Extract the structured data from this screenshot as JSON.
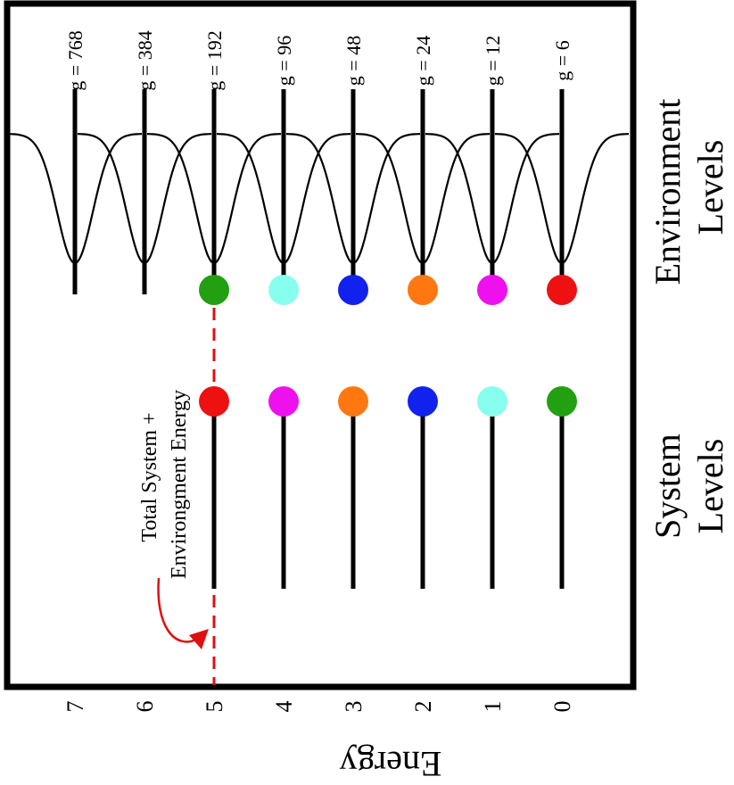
{
  "axis": {
    "label": "Energy",
    "ticks": [
      "0",
      "1",
      "2",
      "3",
      "4",
      "5",
      "6",
      "7"
    ]
  },
  "environment": {
    "label_line1": "Environment",
    "label_line2": "Levels",
    "degeneracies": [
      {
        "energy": 0,
        "text": "g = 6"
      },
      {
        "energy": 1,
        "text": "g = 12"
      },
      {
        "energy": 2,
        "text": "g = 24"
      },
      {
        "energy": 3,
        "text": "g = 48"
      },
      {
        "energy": 4,
        "text": "g = 96"
      },
      {
        "energy": 5,
        "text": "g = 192"
      },
      {
        "energy": 6,
        "text": "g = 384"
      },
      {
        "energy": 7,
        "text": "g = 768"
      }
    ],
    "dots": [
      {
        "energy": 0,
        "color": "#ee1111"
      },
      {
        "energy": 1,
        "color": "#ee11ee"
      },
      {
        "energy": 2,
        "color": "#ff7711"
      },
      {
        "energy": 3,
        "color": "#1122ee"
      },
      {
        "energy": 4,
        "color": "#88ffee"
      },
      {
        "energy": 5,
        "color": "#22a011"
      }
    ]
  },
  "system": {
    "label_line1": "System",
    "label_line2": "Levels",
    "dots": [
      {
        "energy": 0,
        "color": "#22a011"
      },
      {
        "energy": 1,
        "color": "#88ffee"
      },
      {
        "energy": 2,
        "color": "#1122ee"
      },
      {
        "energy": 3,
        "color": "#ff7711"
      },
      {
        "energy": 4,
        "color": "#ee11ee"
      },
      {
        "energy": 5,
        "color": "#ee1111"
      }
    ]
  },
  "total_energy": {
    "level": 5,
    "label_line1": "Total System +",
    "label_line2": "Environgment Energy",
    "color": "#dd1111"
  }
}
